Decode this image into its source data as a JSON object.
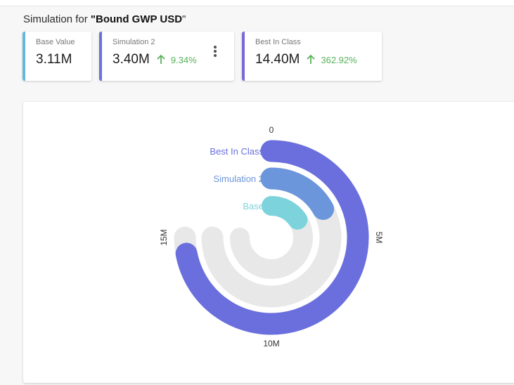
{
  "heading": {
    "prefix": "Simulation for ",
    "open_quote": "\"",
    "name": "Bound GWP USD",
    "close_quote": "\""
  },
  "cards": [
    {
      "label": "Base Value",
      "value": "3.11M",
      "delta": "",
      "accent": "#6ab5de"
    },
    {
      "label": "Simulation 2",
      "value": "3.40M",
      "delta": "9.34%",
      "accent": "#6b72d9"
    },
    {
      "label": "Best In Class",
      "value": "14.40M",
      "delta": "362.92%",
      "accent": "#7b68d8"
    }
  ],
  "colors": {
    "delta_up": "#58b25a",
    "track": "#e8e8e8"
  },
  "chart_data": {
    "type": "radial-bar",
    "max": 15,
    "axis_ticks": [
      {
        "value": 0,
        "label": "0"
      },
      {
        "value": 5,
        "label": "5M"
      },
      {
        "value": 10,
        "label": "10M"
      },
      {
        "value": 15,
        "label": "15M"
      }
    ],
    "series": [
      {
        "name": "Best In Class",
        "value": 14.4,
        "color": "#6a6fdd"
      },
      {
        "name": "Simulation 2",
        "value": 3.4,
        "color": "#6b96dc"
      },
      {
        "name": "Base",
        "value": 3.11,
        "color": "#7dd3dc"
      }
    ]
  }
}
